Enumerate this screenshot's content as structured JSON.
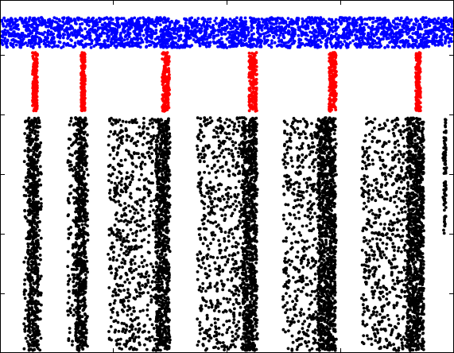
{
  "chart_data": {
    "type": "scatter",
    "title": "",
    "xlabel": "",
    "ylabel": "",
    "xlim": [
      0,
      571
    ],
    "ylim": [
      0,
      444
    ],
    "grid": false,
    "legend": "none",
    "x_ticks": [
      142,
      285,
      428
    ],
    "y_ticks": [
      75,
      150,
      225,
      300,
      375
    ],
    "series": [
      {
        "color": "#0000ff",
        "kind": "band",
        "x_range": [
          2,
          569
        ],
        "y_range": [
          384,
          422
        ]
      },
      {
        "color": "#ff0000",
        "kind": "columns",
        "columns": [
          {
            "x_range": [
              41,
              47
            ],
            "y_range": [
              304,
              378
            ]
          },
          {
            "x_range": [
              102,
              107
            ],
            "y_range": [
              304,
              378
            ]
          },
          {
            "x_range": [
              204,
              213
            ],
            "y_range": [
              304,
              378
            ]
          },
          {
            "x_range": [
              313,
              323
            ],
            "y_range": [
              304,
              378
            ]
          },
          {
            "x_range": [
              414,
              423
            ],
            "y_range": [
              304,
              378
            ]
          },
          {
            "x_range": [
              523,
              529
            ],
            "y_range": [
              304,
              378
            ]
          }
        ]
      },
      {
        "color": "#000000",
        "kind": "columns",
        "columns": [
          {
            "x_range": [
              30,
              52
            ],
            "dense_x": [
              35,
              48
            ],
            "y_range": [
              3,
              296
            ]
          },
          {
            "x_range": [
              85,
              111
            ],
            "dense_x": [
              95,
              108
            ],
            "y_range": [
              3,
              296
            ]
          },
          {
            "x_range": [
              136,
              214
            ],
            "dense_x": [
              196,
              213
            ],
            "y_range": [
              3,
              296
            ]
          },
          {
            "x_range": [
              248,
              324
            ],
            "dense_x": [
              305,
              323
            ],
            "y_range": [
              3,
              296
            ]
          },
          {
            "x_range": [
              356,
              423
            ],
            "dense_x": [
              400,
              422
            ],
            "y_range": [
              3,
              296
            ]
          },
          {
            "x_range": [
              455,
              533
            ],
            "dense_x": [
              512,
              533
            ],
            "y_range": [
              3,
              296
            ]
          },
          {
            "x_range": [
              557,
              562
            ],
            "dense_x": [
              558,
              561
            ],
            "y_range": [
              150,
              296
            ]
          }
        ]
      }
    ]
  }
}
